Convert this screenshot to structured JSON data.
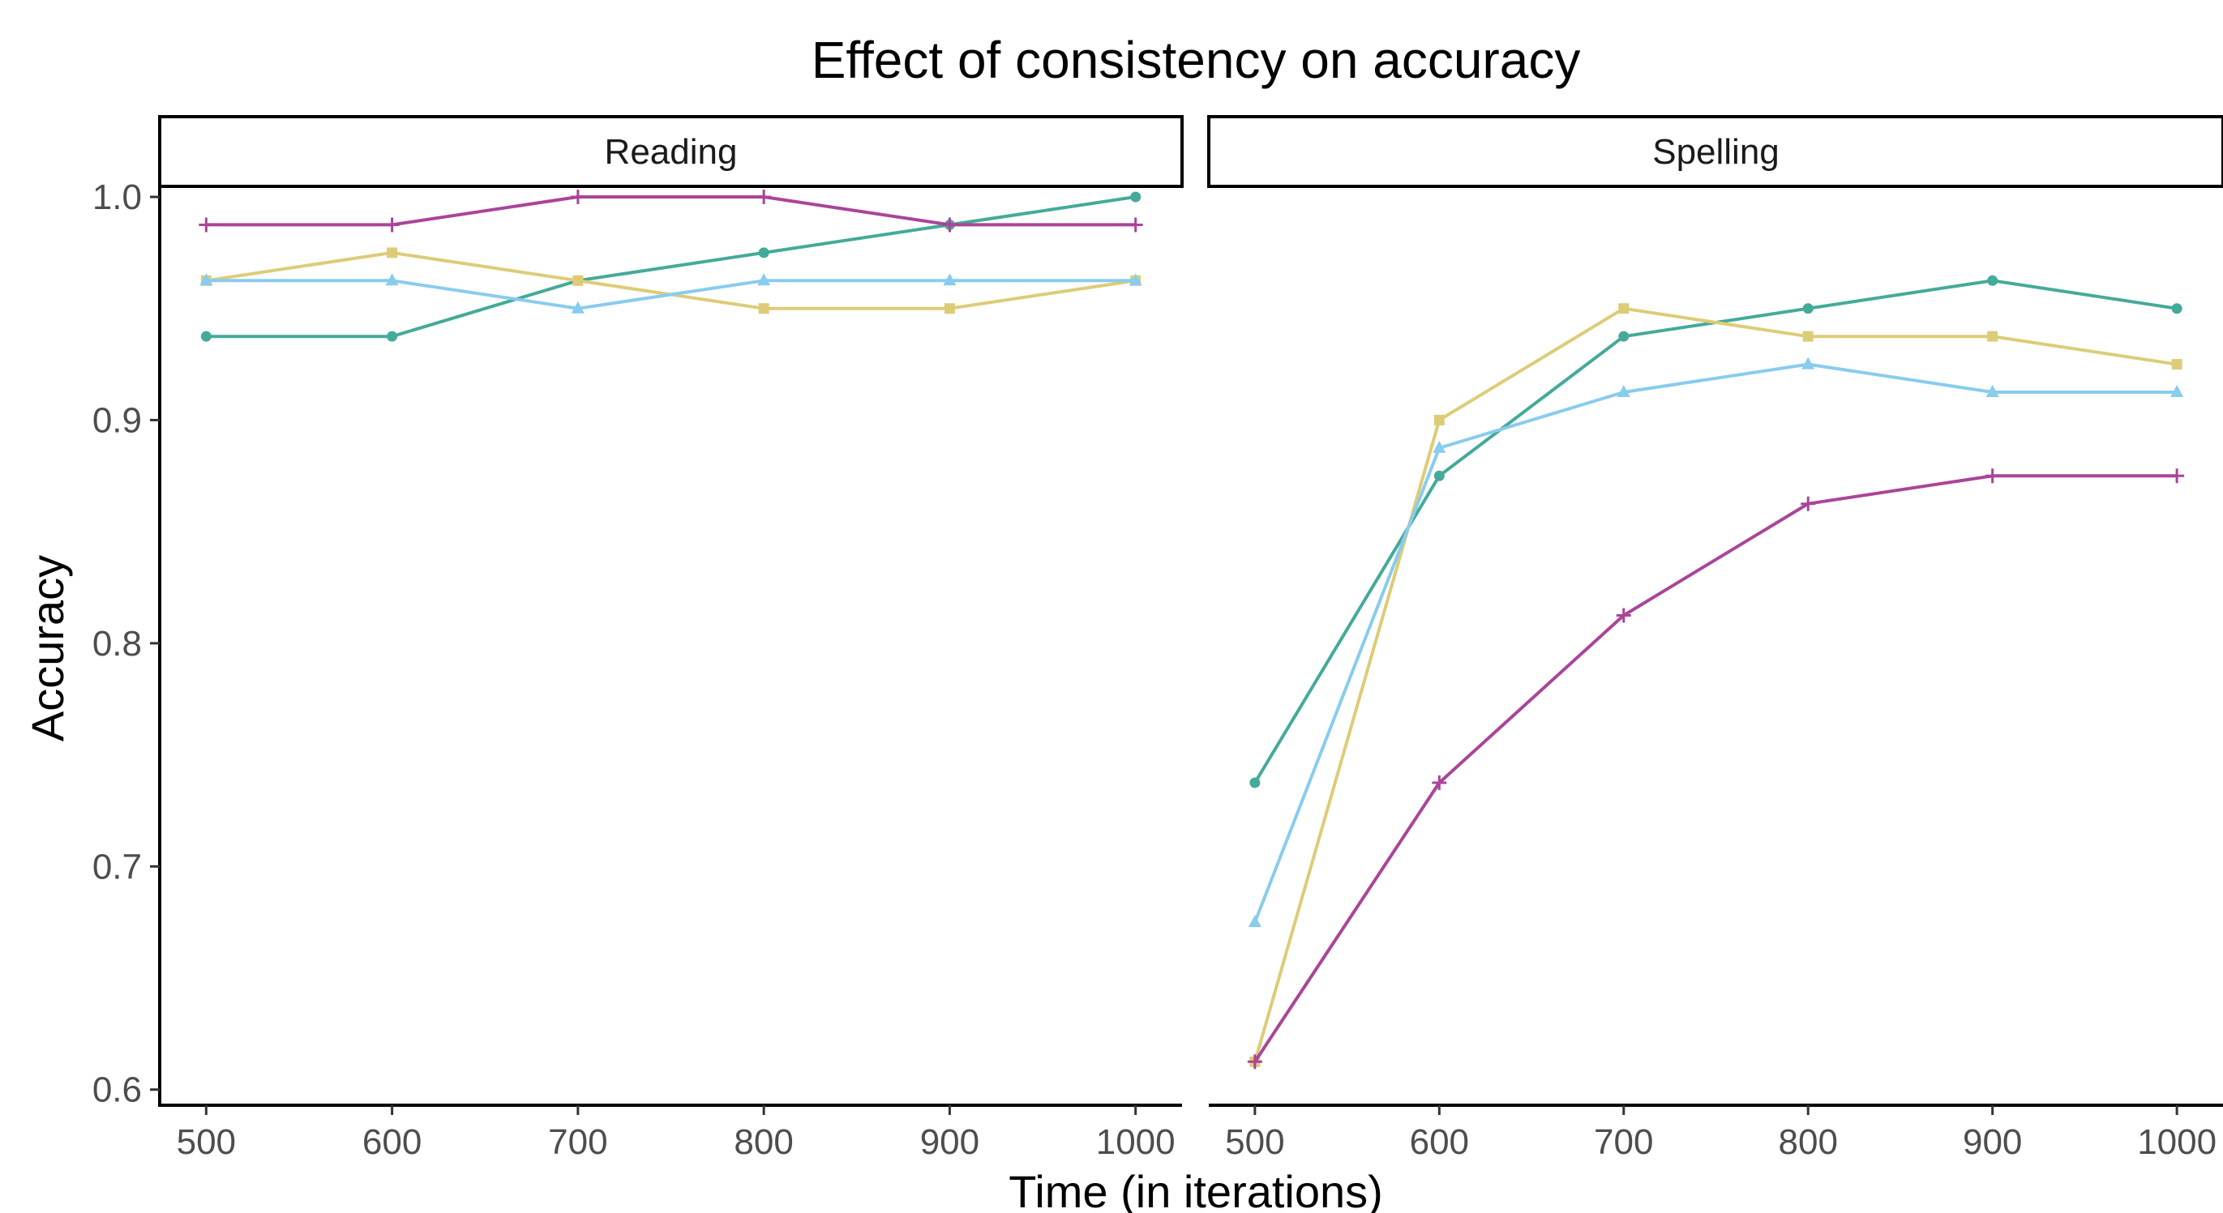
{
  "chart_data": {
    "type": "line",
    "title": "Effect of consistency on accuracy",
    "xlabel": "Time (in iterations)",
    "ylabel": "Accuracy",
    "x": [
      500,
      600,
      700,
      800,
      900,
      1000
    ],
    "xlim": [
      475,
      1025
    ],
    "ylim": [
      0.593,
      1.004
    ],
    "y_ticks": [
      "0.6",
      "0.7",
      "0.8",
      "0.9",
      "1.0"
    ],
    "x_ticks": [
      "500",
      "600",
      "700",
      "800",
      "900",
      "1000"
    ],
    "grid": false,
    "legend": "none",
    "panels": [
      {
        "label": "Reading",
        "series": [
          {
            "color": "#44AA99",
            "marker": "circle",
            "values": [
              0.9375,
              0.9375,
              0.9625,
              0.975,
              0.9875,
              1.0
            ]
          },
          {
            "color": "#DDCC77",
            "marker": "square",
            "values": [
              0.9625,
              0.975,
              0.9625,
              0.95,
              0.95,
              0.9625
            ]
          },
          {
            "color": "#88CCEE",
            "marker": "triangle",
            "values": [
              0.9625,
              0.9625,
              0.95,
              0.9625,
              0.9625,
              0.9625
            ]
          },
          {
            "color": "#AA4499",
            "marker": "plus",
            "values": [
              0.9875,
              0.9875,
              1.0,
              1.0,
              0.9875,
              0.9875
            ]
          }
        ]
      },
      {
        "label": "Spelling",
        "series": [
          {
            "color": "#44AA99",
            "marker": "circle",
            "values": [
              0.7375,
              0.875,
              0.9375,
              0.95,
              0.9625,
              0.95
            ]
          },
          {
            "color": "#DDCC77",
            "marker": "square",
            "values": [
              0.6125,
              0.9,
              0.95,
              0.9375,
              0.9375,
              0.925
            ]
          },
          {
            "color": "#88CCEE",
            "marker": "triangle",
            "values": [
              0.675,
              0.8875,
              0.9125,
              0.925,
              0.9125,
              0.9125
            ]
          },
          {
            "color": "#AA4499",
            "marker": "plus",
            "values": [
              0.6125,
              0.7375,
              0.8125,
              0.8625,
              0.875,
              0.875
            ]
          }
        ]
      }
    ]
  }
}
